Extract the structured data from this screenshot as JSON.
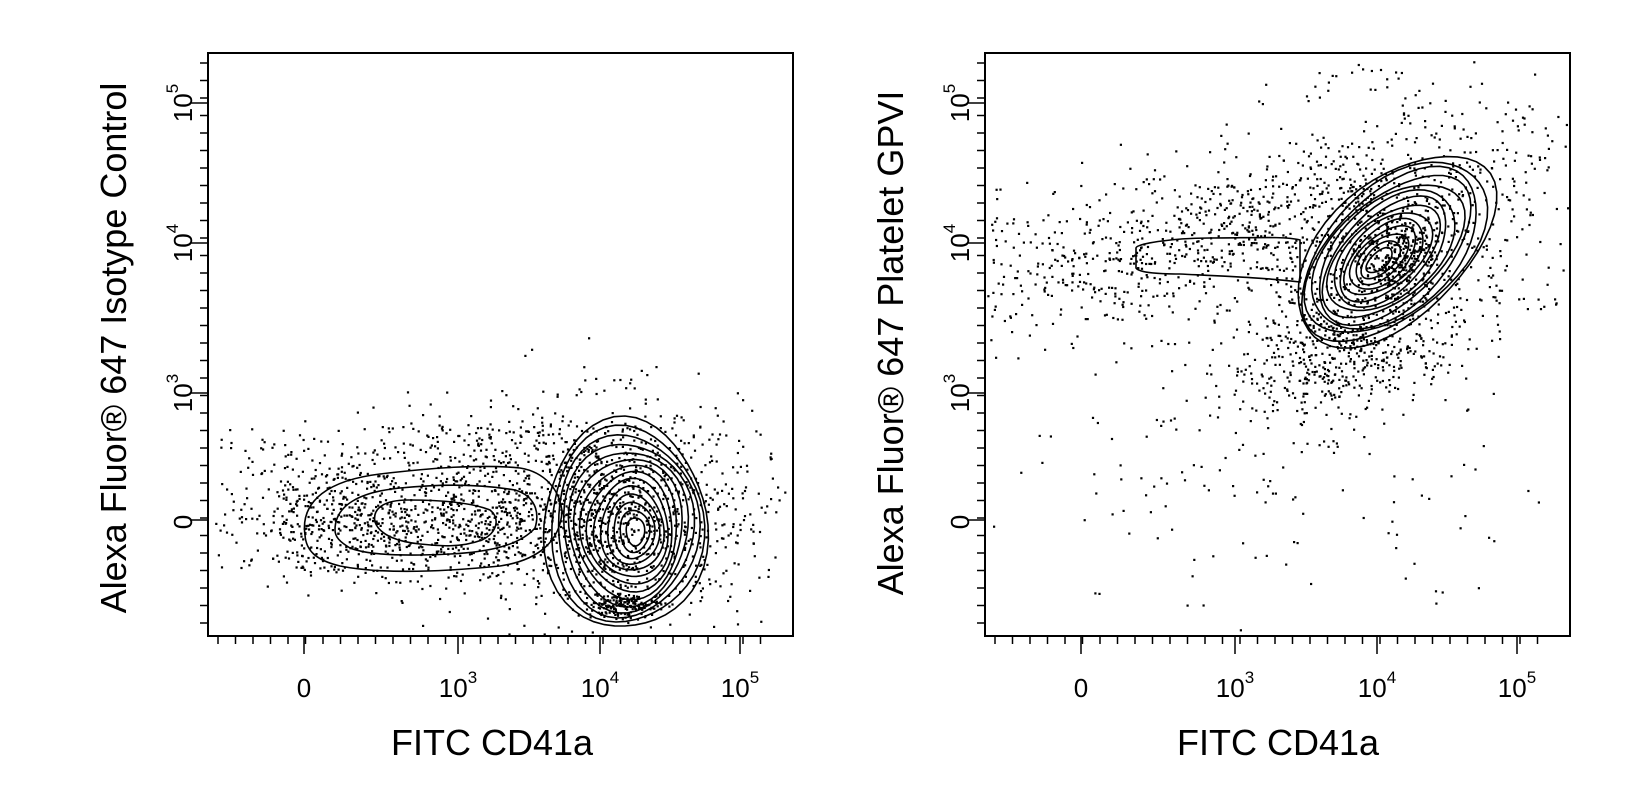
{
  "chart_data": [
    {
      "type": "scatter",
      "subtype": "flow-cytometry-contour",
      "title": "",
      "xlabel": "FITC CD41a",
      "ylabel": "Alexa Fluor® 647 Isotype Control",
      "x_scale": "biexponential",
      "y_scale": "biexponential",
      "x_ticks": [
        "0",
        "10",
        "10",
        "10"
      ],
      "x_tick_exponents": [
        "",
        "3",
        "4",
        "5"
      ],
      "y_ticks": [
        "0",
        "10",
        "10",
        "10"
      ],
      "y_tick_exponents": [
        "",
        "3",
        "4",
        "5"
      ],
      "populations": [
        {
          "name": "",
          "x_center": 16000,
          "y_center": 0,
          "shape": "dense-contour"
        },
        {
          "name": "",
          "x_center": 300,
          "y_center": 0,
          "shape": "elongated-contour"
        }
      ]
    },
    {
      "type": "scatter",
      "subtype": "flow-cytometry-contour",
      "title": "",
      "xlabel": "FITC CD41a",
      "ylabel": "Alexa Fluor® 647 Platelet GPVI",
      "x_scale": "biexponential",
      "y_scale": "biexponential",
      "x_ticks": [
        "0",
        "10",
        "10",
        "10"
      ],
      "x_tick_exponents": [
        "",
        "3",
        "4",
        "5"
      ],
      "y_ticks": [
        "0",
        "10",
        "10",
        "10"
      ],
      "y_tick_exponents": [
        "",
        "3",
        "4",
        "5"
      ],
      "populations": [
        {
          "name": "",
          "x_center": 12000,
          "y_center": 9000,
          "shape": "dense-contour"
        },
        {
          "name": "",
          "x_center": 500,
          "y_center": 8000,
          "shape": "tail"
        }
      ]
    }
  ]
}
